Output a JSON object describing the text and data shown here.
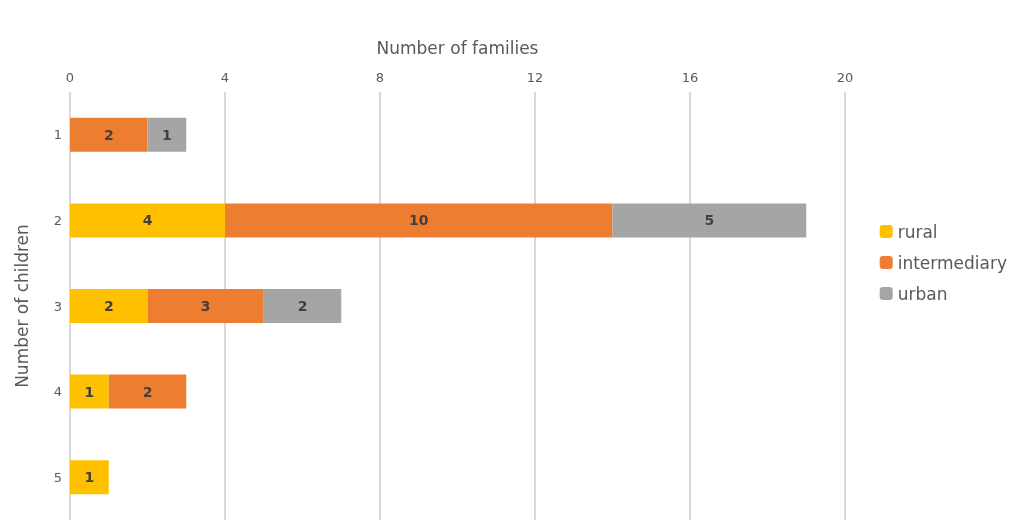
{
  "chart_data": {
    "type": "bar",
    "orientation": "horizontal",
    "stacked": true,
    "xlabel": "Number of families",
    "ylabel": "Number of children",
    "categories": [
      "1",
      "2",
      "3",
      "4",
      "5"
    ],
    "series": [
      {
        "name": "rural",
        "color": "#ffc000",
        "values": [
          null,
          4,
          2,
          1,
          1
        ]
      },
      {
        "name": "intermediary",
        "color": "#ed7d31",
        "values": [
          2,
          10,
          3,
          2,
          null
        ]
      },
      {
        "name": "urban",
        "color": "#a5a5a5",
        "values": [
          1,
          5,
          2,
          null,
          null
        ]
      }
    ],
    "xlim": [
      0,
      20
    ],
    "xticks": [
      0,
      4,
      8,
      12,
      16,
      20
    ],
    "grid": "x",
    "legend": "right",
    "data_labels": true
  }
}
